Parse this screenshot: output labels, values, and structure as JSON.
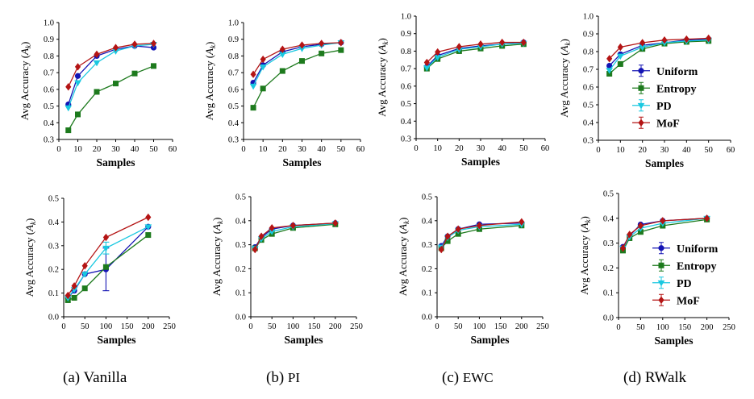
{
  "series_styles": [
    {
      "name": "Uniform",
      "color": "#1414b4",
      "marker": "circle"
    },
    {
      "name": "Entropy",
      "color": "#1d7a1d",
      "marker": "square"
    },
    {
      "name": "PD",
      "color": "#19c8e0",
      "marker": "triangle-down"
    },
    {
      "name": "MoF",
      "color": "#b41414",
      "marker": "diamond"
    }
  ],
  "captions": [
    {
      "label": "(a)",
      "name": "Vanilla"
    },
    {
      "label": "(b)",
      "name": "PI"
    },
    {
      "label": "(c)",
      "name": "EWC"
    },
    {
      "label": "(d)",
      "name": "RWalk"
    }
  ],
  "chart_data": [
    {
      "type": "line",
      "panel": "a-top",
      "xlabel": "Samples",
      "ylabel": "Avg Accuracy (A_k)",
      "xlim": [
        0,
        60
      ],
      "ylim": [
        0.3,
        1.0
      ],
      "xticks": [
        "0",
        "10",
        "20",
        "30",
        "40",
        "50",
        "60"
      ],
      "yticks": [
        "0.3",
        "0.4",
        "0.5",
        "0.6",
        "0.7",
        "0.8",
        "0.9",
        "1.0"
      ],
      "x": [
        5,
        10,
        20,
        30,
        40,
        50
      ],
      "series": [
        {
          "name": "Uniform",
          "values": [
            0.51,
            0.68,
            0.8,
            0.84,
            0.86,
            0.85
          ]
        },
        {
          "name": "Entropy",
          "values": [
            0.355,
            0.45,
            0.585,
            0.635,
            0.695,
            0.74
          ]
        },
        {
          "name": "PD",
          "values": [
            0.49,
            0.64,
            0.76,
            0.83,
            0.86,
            0.87
          ]
        },
        {
          "name": "MoF",
          "values": [
            0.615,
            0.735,
            0.81,
            0.85,
            0.87,
            0.875
          ]
        }
      ]
    },
    {
      "type": "line",
      "panel": "b-top",
      "xlabel": "Samples",
      "ylabel": "Avg Accuracy (A_k)",
      "xlim": [
        0,
        60
      ],
      "ylim": [
        0.3,
        1.0
      ],
      "xticks": [
        "0",
        "10",
        "20",
        "30",
        "40",
        "50",
        "60"
      ],
      "yticks": [
        "0.3",
        "0.4",
        "0.5",
        "0.6",
        "0.7",
        "0.8",
        "0.9",
        "1.0"
      ],
      "x": [
        5,
        10,
        20,
        30,
        40,
        50
      ],
      "series": [
        {
          "name": "Uniform",
          "values": [
            0.64,
            0.745,
            0.825,
            0.855,
            0.87,
            0.88
          ]
        },
        {
          "name": "Entropy",
          "values": [
            0.49,
            0.605,
            0.71,
            0.77,
            0.815,
            0.835
          ]
        },
        {
          "name": "PD",
          "values": [
            0.62,
            0.735,
            0.81,
            0.845,
            0.865,
            0.88
          ]
        },
        {
          "name": "MoF",
          "values": [
            0.69,
            0.78,
            0.84,
            0.865,
            0.875,
            0.88
          ]
        }
      ]
    },
    {
      "type": "line",
      "panel": "c-top",
      "xlabel": "Samples",
      "ylabel": "Avg Accuracy (A_k)",
      "xlim": [
        0,
        60
      ],
      "ylim": [
        0.3,
        1.0
      ],
      "xticks": [
        "0",
        "10",
        "20",
        "30",
        "40",
        "50",
        "60"
      ],
      "yticks": [
        "0.3",
        "0.4",
        "0.5",
        "0.6",
        "0.7",
        "0.8",
        "0.9",
        "1.0"
      ],
      "x": [
        5,
        10,
        20,
        30,
        40,
        50
      ],
      "series": [
        {
          "name": "Uniform",
          "values": [
            0.71,
            0.775,
            0.815,
            0.83,
            0.84,
            0.85
          ]
        },
        {
          "name": "Entropy",
          "values": [
            0.7,
            0.755,
            0.8,
            0.815,
            0.83,
            0.84
          ]
        },
        {
          "name": "PD",
          "values": [
            0.705,
            0.765,
            0.81,
            0.825,
            0.84,
            0.845
          ]
        },
        {
          "name": "MoF",
          "values": [
            0.735,
            0.795,
            0.825,
            0.84,
            0.85,
            0.85
          ]
        }
      ]
    },
    {
      "type": "line",
      "panel": "d-top",
      "xlabel": "Samples",
      "ylabel": "Avg Accuracy (A_k)",
      "xlim": [
        0,
        60
      ],
      "ylim": [
        0.3,
        1.0
      ],
      "xticks": [
        "0",
        "10",
        "20",
        "30",
        "40",
        "50",
        "60"
      ],
      "yticks": [
        "0.3",
        "0.4",
        "0.5",
        "0.6",
        "0.7",
        "0.8",
        "0.9",
        "1.0"
      ],
      "x": [
        5,
        10,
        20,
        30,
        40,
        50
      ],
      "legend": "center-right",
      "series": [
        {
          "name": "Uniform",
          "values": [
            0.72,
            0.785,
            0.835,
            0.85,
            0.865,
            0.87
          ]
        },
        {
          "name": "Entropy",
          "values": [
            0.675,
            0.73,
            0.815,
            0.845,
            0.855,
            0.86
          ]
        },
        {
          "name": "PD",
          "values": [
            0.695,
            0.775,
            0.825,
            0.85,
            0.86,
            0.865
          ]
        },
        {
          "name": "MoF",
          "values": [
            0.76,
            0.825,
            0.85,
            0.865,
            0.87,
            0.875
          ]
        }
      ]
    },
    {
      "type": "line",
      "panel": "a-bottom",
      "xlabel": "Samples",
      "ylabel": "Avg Accuracy (A_k)",
      "xlim": [
        0,
        250
      ],
      "ylim": [
        0.0,
        0.5
      ],
      "xticks": [
        "0",
        "50",
        "100",
        "150",
        "200",
        "250"
      ],
      "yticks": [
        "0.0",
        "0.1",
        "0.2",
        "0.3",
        "0.4",
        "0.5"
      ],
      "x": [
        10,
        25,
        50,
        100,
        200
      ],
      "series": [
        {
          "name": "Uniform",
          "values": [
            0.08,
            0.11,
            0.18,
            0.2,
            0.38
          ],
          "error": [
            0,
            0,
            0,
            0.09,
            0
          ]
        },
        {
          "name": "Entropy",
          "values": [
            0.07,
            0.08,
            0.12,
            0.21,
            0.345
          ]
        },
        {
          "name": "PD",
          "values": [
            0.08,
            0.115,
            0.18,
            0.29,
            0.38
          ],
          "error": [
            0,
            0,
            0,
            0.025,
            0
          ]
        },
        {
          "name": "MoF",
          "values": [
            0.09,
            0.13,
            0.215,
            0.335,
            0.42
          ]
        }
      ]
    },
    {
      "type": "line",
      "panel": "b-bottom",
      "xlabel": "Samples",
      "ylabel": "Avg Accuracy (A_k)",
      "xlim": [
        0,
        250
      ],
      "ylim": [
        0.0,
        0.5
      ],
      "xticks": [
        "0",
        "50",
        "100",
        "150",
        "200",
        "250"
      ],
      "yticks": [
        "0.0",
        "0.1",
        "0.2",
        "0.3",
        "0.4",
        "0.5"
      ],
      "x": [
        10,
        25,
        50,
        100,
        200
      ],
      "series": [
        {
          "name": "Uniform",
          "values": [
            0.29,
            0.33,
            0.365,
            0.38,
            0.39
          ]
        },
        {
          "name": "Entropy",
          "values": [
            0.285,
            0.32,
            0.345,
            0.37,
            0.385
          ]
        },
        {
          "name": "PD",
          "values": [
            0.285,
            0.325,
            0.355,
            0.375,
            0.388
          ]
        },
        {
          "name": "MoF",
          "values": [
            0.28,
            0.335,
            0.37,
            0.38,
            0.39
          ]
        }
      ]
    },
    {
      "type": "line",
      "panel": "c-bottom",
      "xlabel": "Samples",
      "ylabel": "Avg Accuracy (A_k)",
      "xlim": [
        0,
        250
      ],
      "ylim": [
        0.0,
        0.5
      ],
      "xticks": [
        "0",
        "50",
        "100",
        "150",
        "200",
        "250"
      ],
      "yticks": [
        "0.0",
        "0.1",
        "0.2",
        "0.3",
        "0.4",
        "0.5"
      ],
      "x": [
        10,
        25,
        50,
        100,
        200
      ],
      "series": [
        {
          "name": "Uniform",
          "values": [
            0.295,
            0.335,
            0.365,
            0.385,
            0.39
          ]
        },
        {
          "name": "Entropy",
          "values": [
            0.285,
            0.315,
            0.345,
            0.365,
            0.38
          ]
        },
        {
          "name": "PD",
          "values": [
            0.29,
            0.33,
            0.36,
            0.375,
            0.385
          ]
        },
        {
          "name": "MoF",
          "values": [
            0.28,
            0.335,
            0.365,
            0.38,
            0.395
          ]
        }
      ]
    },
    {
      "type": "line",
      "panel": "d-bottom",
      "xlabel": "Samples",
      "ylabel": "Avg Accuracy (A_k)",
      "xlim": [
        0,
        250
      ],
      "ylim": [
        0.0,
        0.5
      ],
      "xticks": [
        "0",
        "50",
        "100",
        "150",
        "200",
        "250"
      ],
      "yticks": [
        "0.0",
        "0.1",
        "0.2",
        "0.3",
        "0.4",
        "0.5"
      ],
      "x": [
        10,
        25,
        50,
        100,
        200
      ],
      "legend": "center-right",
      "series": [
        {
          "name": "Uniform",
          "values": [
            0.285,
            0.33,
            0.375,
            0.39,
            0.4
          ]
        },
        {
          "name": "Entropy",
          "values": [
            0.27,
            0.32,
            0.345,
            0.37,
            0.395
          ]
        },
        {
          "name": "PD",
          "values": [
            0.28,
            0.325,
            0.36,
            0.38,
            0.4
          ]
        },
        {
          "name": "MoF",
          "values": [
            0.28,
            0.335,
            0.37,
            0.39,
            0.4
          ]
        }
      ]
    }
  ]
}
